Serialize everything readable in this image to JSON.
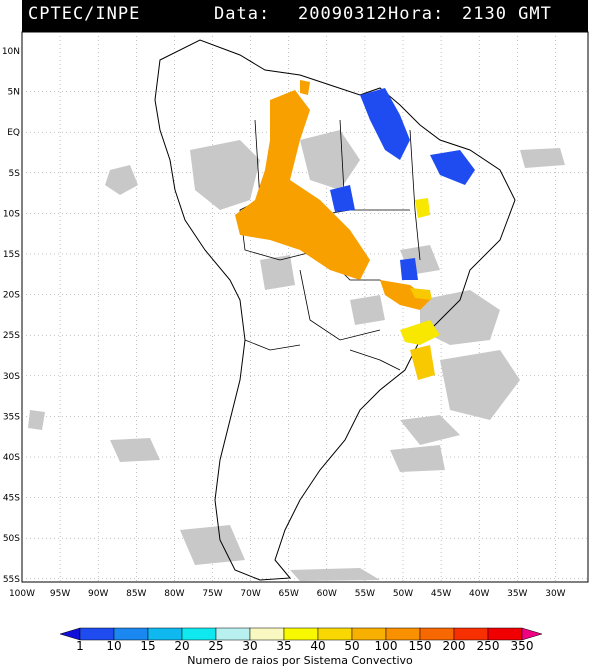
{
  "header": {
    "source": "CPTEC/INPE",
    "date_label": "Data:",
    "date": "20090312",
    "hour_label": "Hora:",
    "hour": "2130 GMT"
  },
  "map": {
    "lat_labels": [
      "10N",
      "5N",
      "EQ",
      "5S",
      "10S",
      "15S",
      "20S",
      "25S",
      "30S",
      "35S",
      "40S",
      "45S",
      "50S",
      "55S"
    ],
    "lon_labels": [
      "100W",
      "95W",
      "90W",
      "85W",
      "80W",
      "75W",
      "70W",
      "65W",
      "60W",
      "55W",
      "50W",
      "45W",
      "40W",
      "35W",
      "30W"
    ]
  },
  "colorbar": {
    "label": "Numero de raios por Sistema Convectivo",
    "ticks": [
      "1",
      "10",
      "15",
      "20",
      "25",
      "30",
      "35",
      "40",
      "50",
      "100",
      "150",
      "200",
      "250",
      "350"
    ],
    "colors": [
      "#1010d8",
      "#1e4cf0",
      "#1a88f0",
      "#10b8f0",
      "#10e8f0",
      "#b8f0f0",
      "#f8f8c0",
      "#f8f800",
      "#f8d800",
      "#f8b000",
      "#f89000",
      "#f86800",
      "#f83000",
      "#f00000",
      "#f00080"
    ]
  }
}
